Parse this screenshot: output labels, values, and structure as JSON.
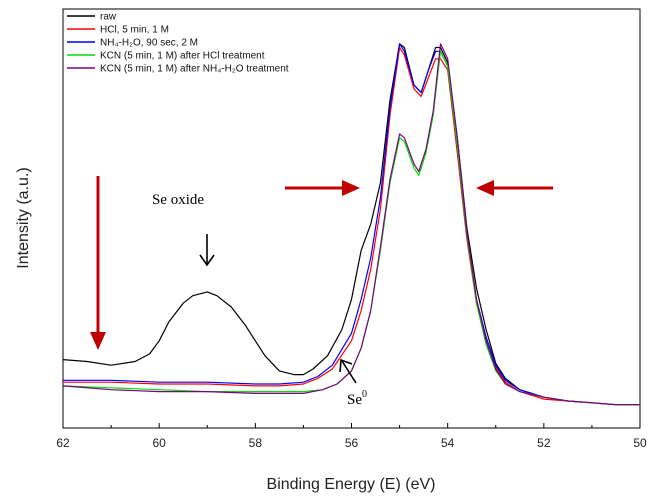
{
  "chart_data": {
    "type": "line",
    "title": "",
    "xlabel": "Binding Energy (E) (eV)",
    "ylabel": "Intensity (a.u.)",
    "xlim": [
      62,
      50
    ],
    "x_reversed": true,
    "ylim": [
      0,
      100
    ],
    "y_ticks_shown": false,
    "grid": false,
    "legend_position": "top-left",
    "x_ticks": [
      62,
      60,
      58,
      56,
      54,
      52,
      50
    ],
    "series": [
      {
        "name": "raw",
        "color": "#000000",
        "points": [
          [
            62,
            15
          ],
          [
            61.5,
            14.5
          ],
          [
            61,
            13.5
          ],
          [
            60.5,
            14.5
          ],
          [
            60.2,
            16.5
          ],
          [
            60,
            20
          ],
          [
            59.8,
            25
          ],
          [
            59.5,
            30
          ],
          [
            59.3,
            32
          ],
          [
            59,
            33
          ],
          [
            58.8,
            32
          ],
          [
            58.5,
            29
          ],
          [
            58.2,
            24
          ],
          [
            58,
            20
          ],
          [
            57.8,
            16
          ],
          [
            57.5,
            12
          ],
          [
            57.2,
            11
          ],
          [
            57,
            11
          ],
          [
            56.8,
            12.5
          ],
          [
            56.5,
            16
          ],
          [
            56.2,
            23
          ],
          [
            56,
            31
          ],
          [
            55.8,
            44
          ],
          [
            55.6,
            51
          ],
          [
            55.4,
            62
          ],
          [
            55.2,
            84
          ],
          [
            55,
            99
          ],
          [
            54.9,
            98
          ],
          [
            54.7,
            88
          ],
          [
            54.55,
            86
          ],
          [
            54.4,
            92
          ],
          [
            54.25,
            98
          ],
          [
            54.15,
            98
          ],
          [
            54,
            94
          ],
          [
            53.8,
            74
          ],
          [
            53.6,
            50
          ],
          [
            53.4,
            34
          ],
          [
            53.2,
            23
          ],
          [
            53,
            14
          ],
          [
            52.8,
            10
          ],
          [
            52.5,
            7
          ],
          [
            52,
            5
          ],
          [
            51.5,
            4
          ],
          [
            51,
            3.5
          ],
          [
            50.5,
            3
          ],
          [
            50,
            3
          ]
        ]
      },
      {
        "name": "HCl, 5 min, 1 M",
        "color": "#ff0000",
        "points": [
          [
            62,
            9
          ],
          [
            61,
            9
          ],
          [
            60,
            8.5
          ],
          [
            59,
            8.5
          ],
          [
            58,
            8
          ],
          [
            57.5,
            8
          ],
          [
            57,
            8.5
          ],
          [
            56.7,
            10
          ],
          [
            56.4,
            12.5
          ],
          [
            56,
            20
          ],
          [
            55.8,
            28
          ],
          [
            55.6,
            39
          ],
          [
            55.4,
            55
          ],
          [
            55.2,
            80
          ],
          [
            55,
            98
          ],
          [
            54.9,
            96
          ],
          [
            54.7,
            87
          ],
          [
            54.55,
            85
          ],
          [
            54.4,
            90
          ],
          [
            54.25,
            95
          ],
          [
            54.15,
            95
          ],
          [
            54,
            92
          ],
          [
            53.8,
            70
          ],
          [
            53.6,
            47
          ],
          [
            53.4,
            30
          ],
          [
            53.2,
            20
          ],
          [
            53,
            13
          ],
          [
            52.8,
            9
          ],
          [
            52.5,
            6.5
          ],
          [
            52,
            4.5
          ],
          [
            51.5,
            4
          ],
          [
            51,
            3.5
          ],
          [
            50.5,
            3
          ],
          [
            50,
            3
          ]
        ]
      },
      {
        "name": "NH₄-H₂O, 90 sec, 2 M",
        "color": "#0000ff",
        "points": [
          [
            62,
            9.5
          ],
          [
            61,
            9.5
          ],
          [
            60,
            9
          ],
          [
            59,
            9
          ],
          [
            58,
            8.5
          ],
          [
            57.5,
            8.5
          ],
          [
            57,
            9
          ],
          [
            56.7,
            10.5
          ],
          [
            56.4,
            13.5
          ],
          [
            56,
            22
          ],
          [
            55.8,
            31
          ],
          [
            55.6,
            42
          ],
          [
            55.4,
            58
          ],
          [
            55.2,
            82
          ],
          [
            55,
            99
          ],
          [
            54.9,
            97
          ],
          [
            54.7,
            88
          ],
          [
            54.55,
            86
          ],
          [
            54.4,
            92
          ],
          [
            54.25,
            97
          ],
          [
            54.15,
            97
          ],
          [
            54,
            93
          ],
          [
            53.8,
            72
          ],
          [
            53.6,
            48
          ],
          [
            53.4,
            31
          ],
          [
            53.2,
            21
          ],
          [
            53,
            13.5
          ],
          [
            52.8,
            9.5
          ],
          [
            52.5,
            7
          ],
          [
            52,
            5
          ],
          [
            51.5,
            4
          ],
          [
            51,
            3.5
          ],
          [
            50.5,
            3
          ],
          [
            50,
            3
          ]
        ]
      },
      {
        "name": "KCN (5 min, 1 M) after HCl treatment",
        "color": "#00dd00",
        "points": [
          [
            62,
            8
          ],
          [
            61,
            7.5
          ],
          [
            60,
            7
          ],
          [
            59,
            6.5
          ],
          [
            58,
            6.5
          ],
          [
            57,
            6.5
          ],
          [
            56.6,
            7
          ],
          [
            56.3,
            8.5
          ],
          [
            56,
            12
          ],
          [
            55.8,
            18
          ],
          [
            55.6,
            28
          ],
          [
            55.4,
            44
          ],
          [
            55.2,
            62
          ],
          [
            55,
            74
          ],
          [
            54.9,
            73
          ],
          [
            54.7,
            66
          ],
          [
            54.6,
            64
          ],
          [
            54.45,
            70
          ],
          [
            54.3,
            80
          ],
          [
            54.15,
            97
          ],
          [
            54,
            93
          ],
          [
            53.8,
            72
          ],
          [
            53.6,
            48
          ],
          [
            53.4,
            30
          ],
          [
            53.2,
            19
          ],
          [
            53,
            12
          ],
          [
            52.8,
            8.5
          ],
          [
            52.5,
            6.5
          ],
          [
            52,
            5
          ],
          [
            51.5,
            4
          ],
          [
            51,
            3.5
          ],
          [
            50.5,
            3
          ],
          [
            50,
            3
          ]
        ]
      },
      {
        "name": "KCN (5 min, 1 M) after NH₄-H₂O treatment",
        "color": "#800080",
        "points": [
          [
            62,
            8
          ],
          [
            61,
            7
          ],
          [
            60,
            6.5
          ],
          [
            59,
            6.5
          ],
          [
            58,
            6
          ],
          [
            57,
            6
          ],
          [
            56.6,
            7
          ],
          [
            56.3,
            8.5
          ],
          [
            56,
            12
          ],
          [
            55.8,
            18
          ],
          [
            55.6,
            28
          ],
          [
            55.4,
            45
          ],
          [
            55.2,
            63
          ],
          [
            55,
            75
          ],
          [
            54.9,
            74
          ],
          [
            54.7,
            67
          ],
          [
            54.6,
            65
          ],
          [
            54.45,
            71
          ],
          [
            54.3,
            81
          ],
          [
            54.15,
            99
          ],
          [
            54,
            95
          ],
          [
            53.8,
            74
          ],
          [
            53.6,
            49
          ],
          [
            53.4,
            31
          ],
          [
            53.2,
            20
          ],
          [
            53,
            12.5
          ],
          [
            52.8,
            8.5
          ],
          [
            52.5,
            6.5
          ],
          [
            52,
            5
          ],
          [
            51.5,
            4
          ],
          [
            51,
            3.5
          ],
          [
            50.5,
            3
          ],
          [
            50,
            3
          ]
        ]
      }
    ],
    "annotations": {
      "se_oxide": "Se oxide",
      "se0_base": "Se",
      "se0_sup": "0"
    }
  }
}
